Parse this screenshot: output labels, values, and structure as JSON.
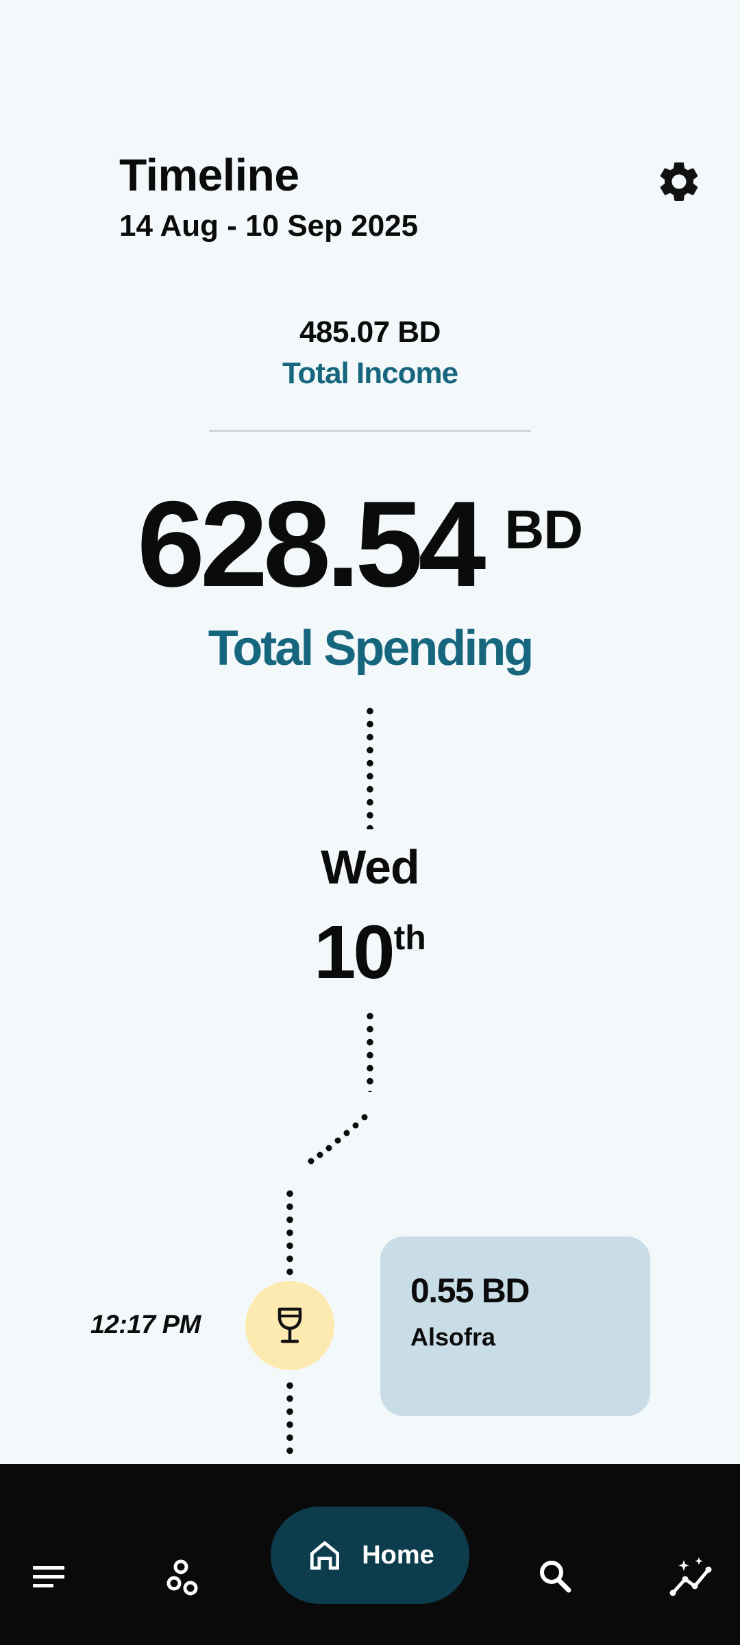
{
  "header": {
    "title": "Timeline",
    "date_range": "14 Aug - 10 Sep 2025",
    "settings_icon": "gear-icon"
  },
  "income": {
    "amount": "485.07 BD",
    "label": "Total Income"
  },
  "spending": {
    "amount": "628.54",
    "currency": "BD",
    "label": "Total Spending"
  },
  "timeline": {
    "day_name": "Wed",
    "day_number": "10",
    "day_suffix": "th",
    "entries": [
      {
        "time": "12:17 PM",
        "category_icon": "wine-glass-icon",
        "amount": "0.55 BD",
        "merchant": "Alsofra"
      }
    ]
  },
  "nav": {
    "items": [
      {
        "icon": "menu-icon"
      },
      {
        "icon": "categories-icon"
      },
      {
        "icon": "home-icon",
        "label": "Home",
        "active": true
      },
      {
        "icon": "search-icon"
      },
      {
        "icon": "insights-icon"
      }
    ]
  },
  "colors": {
    "background": "#f3f8fb",
    "accent_teal": "#16667d",
    "card": "#c8dde6",
    "category_circle": "#fdeab1",
    "nav_bar": "#0a0a0a",
    "nav_active": "#0d3d4d"
  }
}
